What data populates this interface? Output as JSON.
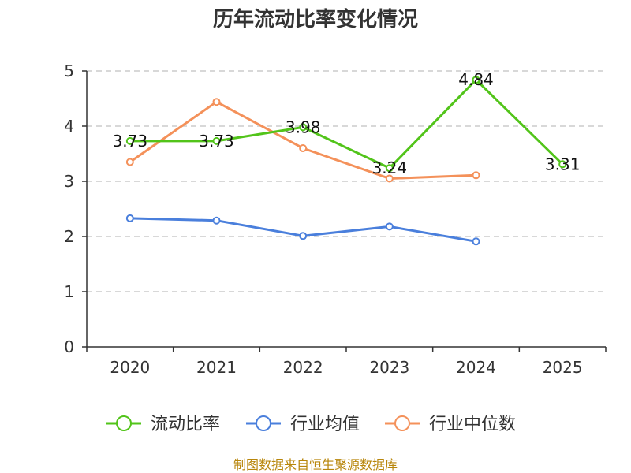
{
  "chart_data": {
    "type": "line",
    "title": "历年流动比率变化情况",
    "categories": [
      "2020",
      "2021",
      "2022",
      "2023",
      "2024",
      "2025"
    ],
    "ylim": [
      0,
      5
    ],
    "yticks": [
      "0",
      "1",
      "2",
      "3",
      "4",
      "5"
    ],
    "grid": true,
    "legend_position": "bottom",
    "series": [
      {
        "name": "流动比率",
        "color": "#52c41a",
        "values": [
          3.73,
          3.73,
          3.98,
          3.24,
          4.84,
          3.31
        ],
        "labels": [
          "3.73",
          "3.73",
          "3.98",
          "3.24",
          "4.84",
          "3.31"
        ]
      },
      {
        "name": "行业均值",
        "color": "#4a7fdc",
        "values": [
          2.33,
          2.29,
          2.01,
          2.18,
          1.91,
          null
        ]
      },
      {
        "name": "行业中位数",
        "color": "#f4915a",
        "values": [
          3.35,
          4.44,
          3.6,
          3.05,
          3.11,
          null
        ]
      }
    ]
  },
  "source": "制图数据来自恒生聚源数据库"
}
